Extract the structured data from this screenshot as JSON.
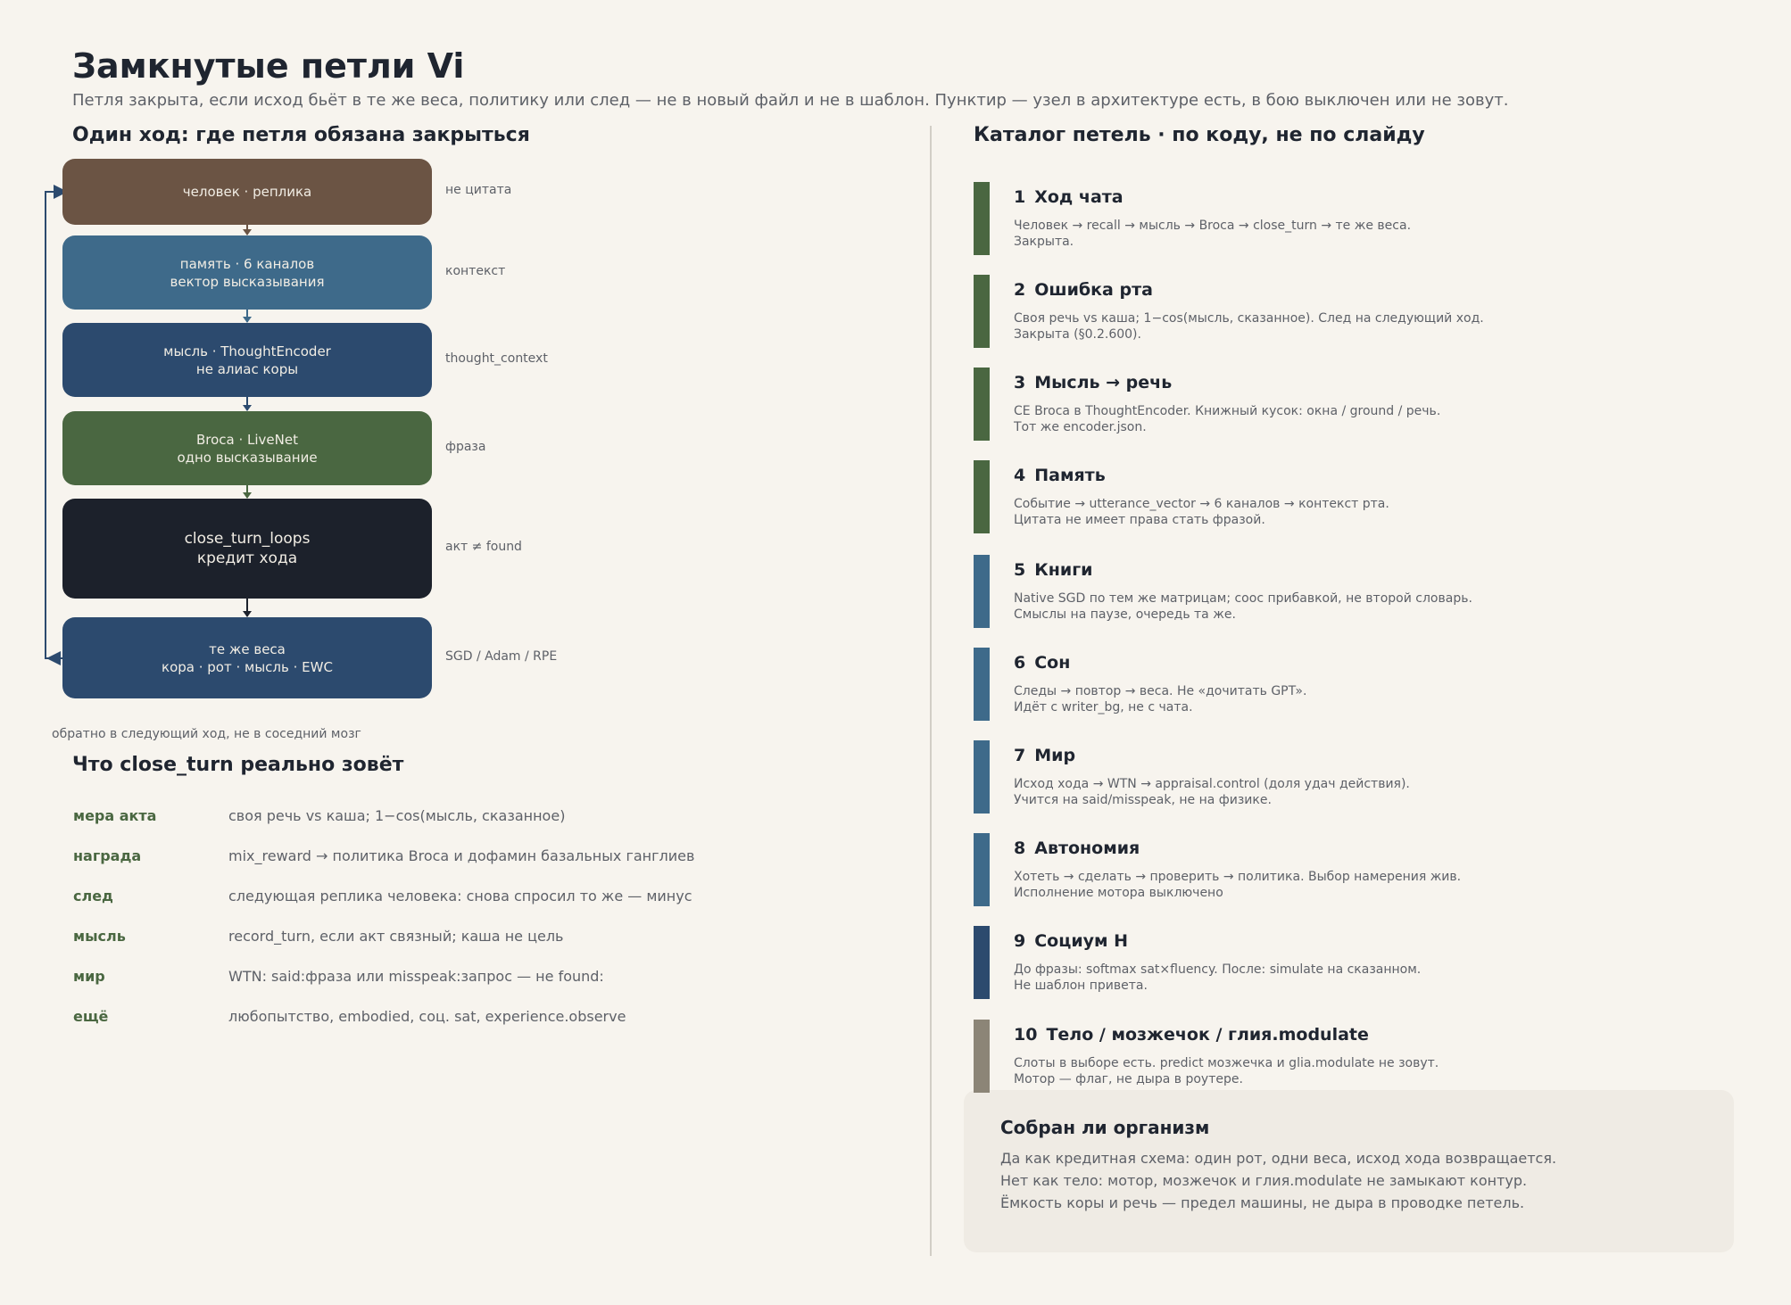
{
  "header": {
    "title": "Замкнутые петли Vi",
    "subtitle": "Петля закрыта, если исход бьёт в те же веса, политику или след — не в новый файл и не в шаблон. Пунктир — узел в архитектуре есть, в бою выключен или не зовут."
  },
  "flow": {
    "heading": "Один ход: где петля обязана закрыться",
    "nodes": [
      {
        "lines": [
          "человек · реплика"
        ],
        "note": "не цитата"
      },
      {
        "lines": [
          "память · 6 каналов",
          "вектор высказывания"
        ],
        "note": "контекст"
      },
      {
        "lines": [
          "мысль · ThoughtEncoder",
          "не алиас коры"
        ],
        "note": "thought_context"
      },
      {
        "lines": [
          "Broca · LiveNet",
          "одно высказывание"
        ],
        "note": "фраза"
      },
      {
        "lines": [
          "close_turn_loops",
          "кредит хода"
        ],
        "note": "акт ≠ found"
      },
      {
        "lines": [
          "те же веса",
          "кора · рот · мысль · EWC"
        ],
        "note": "SGD / Adam / RPE"
      }
    ],
    "return_note": "обратно в следующий ход, не в соседний мозг"
  },
  "calls": {
    "heading": "Что close_turn реально зовёт",
    "rows": [
      [
        "мера акта",
        "своя речь vs каша; 1−cos(мысль, сказанное)"
      ],
      [
        "награда",
        "mix_reward → политика Broca и дофамин базальных ганглиев"
      ],
      [
        "след",
        "следующая реплика человека: снова спросил то же — минус"
      ],
      [
        "мысль",
        "record_turn, если акт связный; каша не цель"
      ],
      [
        "мир",
        "WTN: said:фраза или misspeak:запрос — не found:"
      ],
      [
        "ещё",
        "любопытство, embodied, соц. sat, experience.observe"
      ]
    ]
  },
  "catalog": {
    "heading": "Каталог петель  ·  по коду, не по слайду",
    "items": [
      {
        "num": "1",
        "title": "Ход чата",
        "lines": [
          "Человек → recall → мысль → Broca → close_turn → те же веса.",
          "Закрыта."
        ]
      },
      {
        "num": "2",
        "title": "Ошибка рта",
        "lines": [
          "Своя речь vs каша; 1−cos(мысль, сказанное). След на следующий ход.",
          "Закрыта (§0.2.600)."
        ]
      },
      {
        "num": "3",
        "title": "Мысль → речь",
        "lines": [
          "CE Broca в ThoughtEncoder. Книжный кусок: окна / ground / речь.",
          "Тот же encoder.json."
        ]
      },
      {
        "num": "4",
        "title": "Память",
        "lines": [
          "Событие → utterance_vector → 6 каналов → контекст рта.",
          "Цитата не имеет права стать фразой."
        ]
      },
      {
        "num": "5",
        "title": "Книги",
        "lines": [
          "Native SGD по тем же матрицам; cooc прибавкой, не второй словарь.",
          "Смыслы на паузе, очередь та же."
        ]
      },
      {
        "num": "6",
        "title": "Сон",
        "lines": [
          "Следы → повтор → веса. Не «дочитать GPT».",
          "Идёт с writer_bg, не с чата."
        ]
      },
      {
        "num": "7",
        "title": "Мир",
        "lines": [
          "Исход хода → WTN → appraisal.control (доля удач действия).",
          "Учится на said/misspeak, не на физике."
        ]
      },
      {
        "num": "8",
        "title": "Автономия",
        "lines": [
          "Хотеть → сделать → проверить → политика. Выбор намерения жив.",
          "Исполнение мотора выключено"
        ]
      },
      {
        "num": "9",
        "title": "Социум H",
        "lines": [
          "До фразы: softmax sat×fluency. После: simulate на сказанном.",
          "Не шаблон привета."
        ]
      },
      {
        "num": "10",
        "title": "Тело / мозжечок / глия.modulate",
        "lines": [
          "Слоты в выборе есть. predict мозжечка и glia.modulate не зовут.",
          "Мотор — флаг, не дыра в роутере."
        ]
      }
    ]
  },
  "summary": {
    "title": "Собран ли организм",
    "lines": [
      "Да как кредитная схема: один рот, одни веса, исход хода возвращается.",
      "Нет как тело: мотор, мозжечок и глия.modulate не замыкают контур.",
      "Ёмкость коры и речь — предел машины, не дыра в проводке петель."
    ]
  }
}
